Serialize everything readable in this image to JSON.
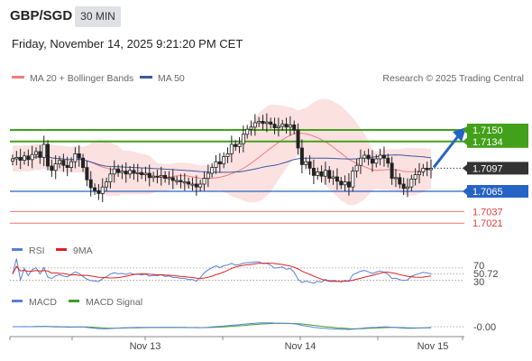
{
  "header": {
    "pair": "GBP/SGD",
    "timeframe": "30 MIN",
    "datetime": "Friday, November 14, 2025 9:21:20 PM CET",
    "credit": "Research © 2025 Trading Central"
  },
  "colors": {
    "green": "#43a01b",
    "blue": "#2563c6",
    "red": "#e23b3b",
    "dark": "#333333",
    "ma20": "#f07d7d",
    "ma50": "#3a5aa0",
    "band": "#fbd7d7",
    "rsi": "#5b7fd6",
    "rsi_ma": "#e02020",
    "macd": "#5b7fd6",
    "macd_signal": "#3f9f2a"
  },
  "legend": {
    "ma20_label": "MA 20 + Bollinger Bands",
    "ma50_label": "MA 50",
    "rsi_label": "RSI",
    "rsi_ma_label": "9MA",
    "macd_label": "MACD",
    "macd_signal_label": "MACD Signal"
  },
  "chart_data": {
    "type": "candlestick",
    "instrument": "GBP/SGD",
    "interval": "30 MIN",
    "x_ticks": [
      "Nov 13",
      "Nov 14",
      "Nov 15"
    ],
    "ylim": [
      1.7005,
      1.7205
    ],
    "levels": [
      {
        "value": 1.715,
        "label": "1.7150",
        "kind": "resistance",
        "color": "green"
      },
      {
        "value": 1.7134,
        "label": "1.7134",
        "kind": "resistance",
        "color": "green"
      },
      {
        "value": 1.7097,
        "label": "1.7097",
        "kind": "last",
        "color": "dark"
      },
      {
        "value": 1.7065,
        "label": "1.7065",
        "kind": "pivot",
        "color": "blue"
      },
      {
        "value": 1.7037,
        "label": "1.7037",
        "kind": "support",
        "color": "red"
      },
      {
        "value": 1.7021,
        "label": "1.7021",
        "kind": "support",
        "color": "red"
      }
    ],
    "candles_close": [
      1.711,
      1.7112,
      1.7108,
      1.7114,
      1.7109,
      1.7116,
      1.712,
      1.7112,
      1.713,
      1.71,
      1.7094,
      1.7103,
      1.7108,
      1.7101,
      1.7098,
      1.7106,
      1.7117,
      1.7111,
      1.7098,
      1.7081,
      1.707,
      1.7066,
      1.7062,
      1.7071,
      1.7078,
      1.7089,
      1.7096,
      1.7091,
      1.7093,
      1.7089,
      1.7094,
      1.709,
      1.7091,
      1.7088,
      1.709,
      1.7084,
      1.7086,
      1.7085,
      1.7087,
      1.7083,
      1.7084,
      1.708,
      1.708,
      1.7078,
      1.7078,
      1.7075,
      1.7075,
      1.7071,
      1.7075,
      1.7083,
      1.709,
      1.7098,
      1.7106,
      1.7103,
      1.7113,
      1.7117,
      1.713,
      1.7127,
      1.7131,
      1.7144,
      1.7151,
      1.7154,
      1.716,
      1.7162,
      1.7159,
      1.7161,
      1.7158,
      1.7153,
      1.7155,
      1.7158,
      1.7154,
      1.7157,
      1.715,
      1.7125,
      1.7102,
      1.7106,
      1.7097,
      1.7087,
      1.7092,
      1.7086,
      1.7094,
      1.7083,
      1.7085,
      1.7079,
      1.7074,
      1.7078,
      1.7071,
      1.7093,
      1.7101,
      1.7111,
      1.7115,
      1.711,
      1.7104,
      1.711,
      1.7115,
      1.7111,
      1.7104,
      1.7083,
      1.7084,
      1.7075,
      1.7069,
      1.7071,
      1.7082,
      1.7088,
      1.7092,
      1.7097,
      1.7095,
      1.7097
    ],
    "rsi": {
      "value": 50.72,
      "label": "50.72",
      "levels": [
        30,
        70
      ],
      "level_labels": [
        "30",
        "70"
      ]
    },
    "macd": {
      "value": 0.0,
      "label": "-0.00"
    }
  }
}
